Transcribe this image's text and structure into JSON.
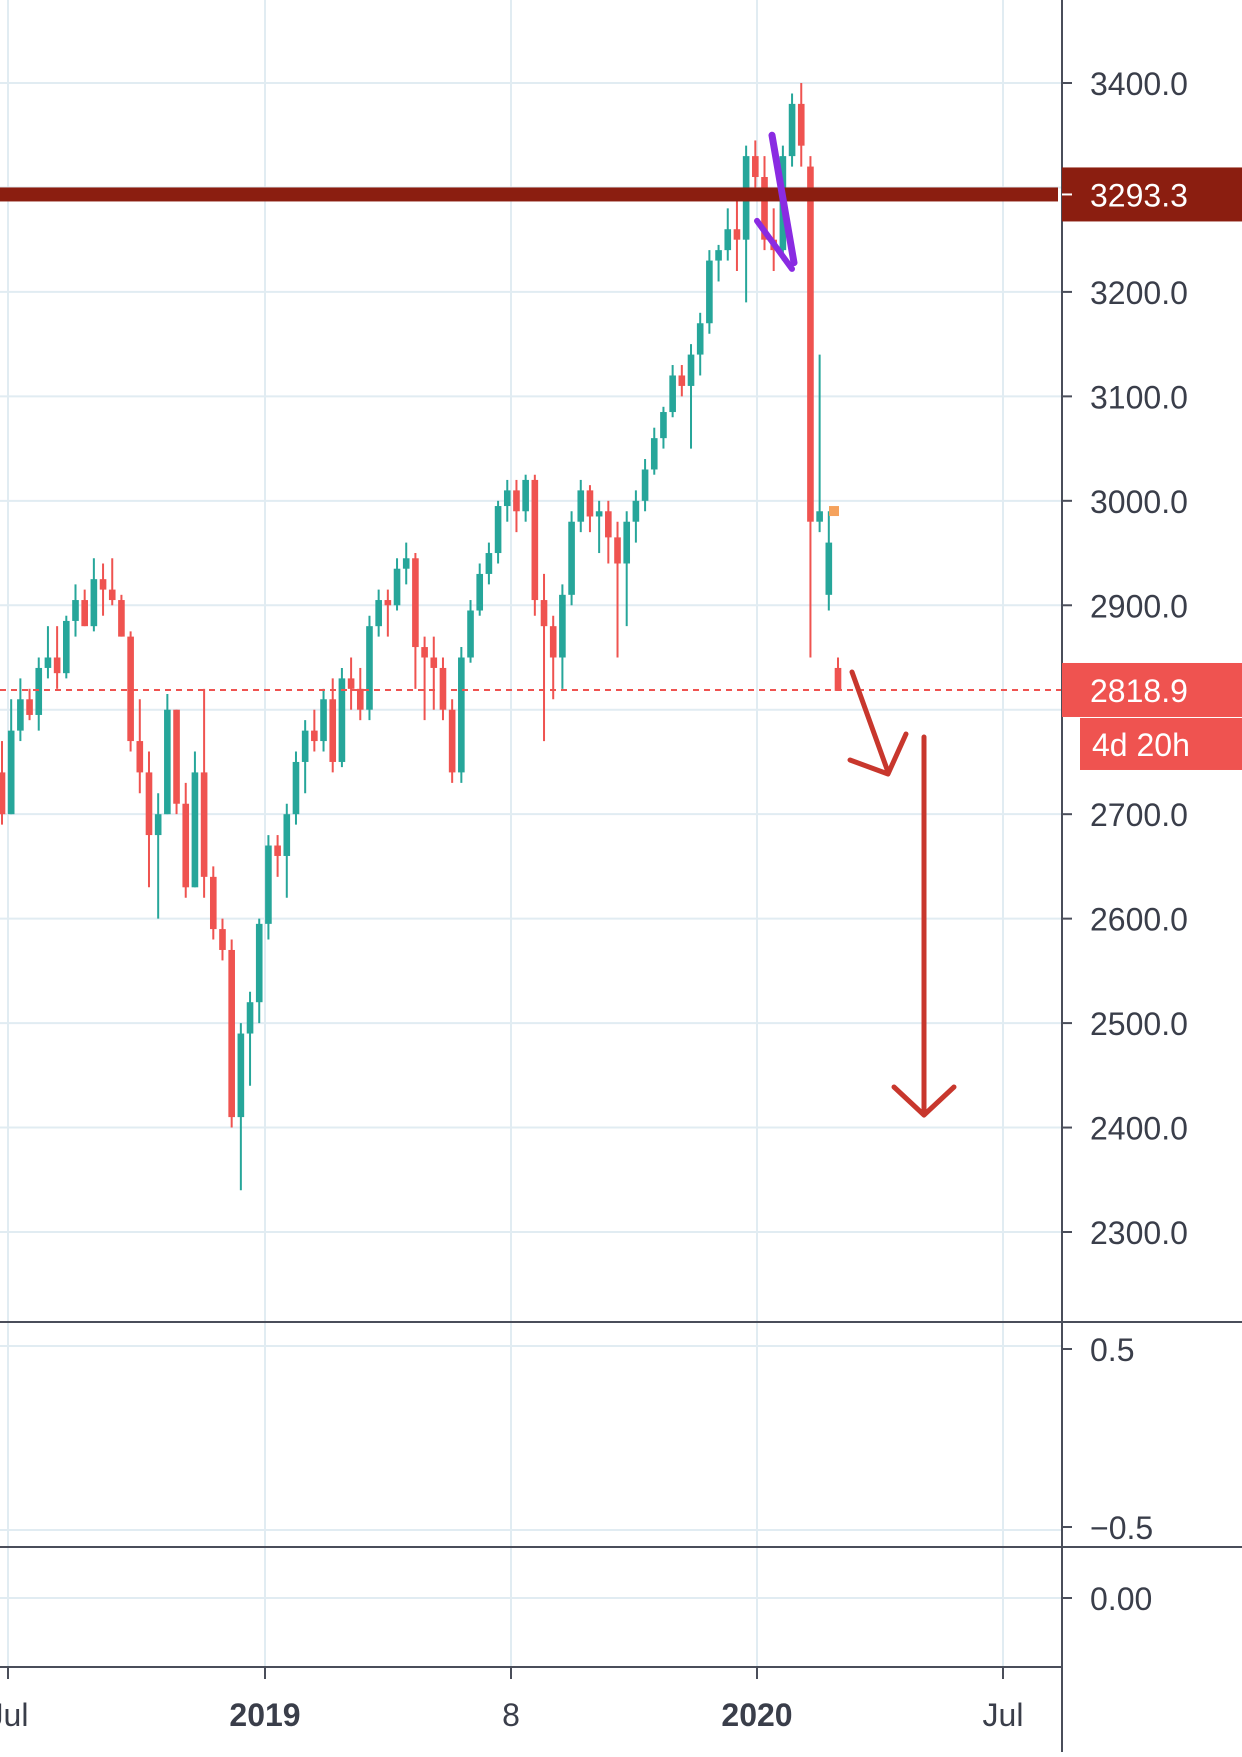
{
  "chart_data": {
    "type": "candlestick",
    "instrument_note": "",
    "colors": {
      "up": "#26a69a",
      "down": "#ef5350",
      "resistance": "#8b1e10",
      "pattern": "#8a2be2",
      "arrow": "#c8372d",
      "grid": "#e1ecf2",
      "axis_text": "#3a3e4a",
      "pane_border": "#4a4e5a",
      "price_label_bg": "#ef5350"
    },
    "price_axis": {
      "ticks": [
        "3400.0",
        "3200.0",
        "3100.0",
        "3000.0",
        "2900.0",
        "2700.0",
        "2600.0",
        "2500.0",
        "2400.0",
        "2300.0"
      ],
      "range": [
        2230,
        3470
      ]
    },
    "time_axis": {
      "labels": [
        {
          "text": "Jul",
          "bold": false
        },
        {
          "text": "2019",
          "bold": true
        },
        {
          "text": "8",
          "bold": false
        },
        {
          "text": "2020",
          "bold": true
        },
        {
          "text": "Jul",
          "bold": false
        }
      ]
    },
    "price_labels": {
      "resistance": "3293.3",
      "last": "2818.9",
      "countdown": "4d 20h"
    },
    "resistance_level": 3293.3,
    "last_price": 2818.9,
    "lower_pane_1": {
      "ticks": [
        "0.5",
        "−0.5"
      ]
    },
    "lower_pane_2": {
      "ticks": [
        "0.00"
      ]
    },
    "candles": [
      [
        2740,
        2770,
        2690,
        2700
      ],
      [
        2700,
        2810,
        2700,
        2780
      ],
      [
        2780,
        2830,
        2770,
        2810
      ],
      [
        2810,
        2820,
        2790,
        2795
      ],
      [
        2795,
        2850,
        2780,
        2840
      ],
      [
        2840,
        2880,
        2830,
        2850
      ],
      [
        2850,
        2880,
        2820,
        2835
      ],
      [
        2835,
        2890,
        2830,
        2885
      ],
      [
        2885,
        2920,
        2870,
        2905
      ],
      [
        2905,
        2915,
        2880,
        2880
      ],
      [
        2880,
        2945,
        2875,
        2925
      ],
      [
        2925,
        2940,
        2890,
        2915
      ],
      [
        2915,
        2945,
        2900,
        2905
      ],
      [
        2905,
        2910,
        2870,
        2870
      ],
      [
        2870,
        2875,
        2760,
        2770
      ],
      [
        2770,
        2810,
        2720,
        2740
      ],
      [
        2740,
        2760,
        2630,
        2680
      ],
      [
        2680,
        2720,
        2600,
        2700
      ],
      [
        2700,
        2815,
        2700,
        2800
      ],
      [
        2800,
        2800,
        2700,
        2710
      ],
      [
        2710,
        2730,
        2620,
        2630
      ],
      [
        2630,
        2760,
        2630,
        2740
      ],
      [
        2740,
        2820,
        2620,
        2640
      ],
      [
        2640,
        2650,
        2580,
        2590
      ],
      [
        2590,
        2600,
        2560,
        2570
      ],
      [
        2570,
        2580,
        2400,
        2410
      ],
      [
        2410,
        2500,
        2340,
        2490
      ],
      [
        2490,
        2530,
        2440,
        2520
      ],
      [
        2520,
        2600,
        2500,
        2595
      ],
      [
        2595,
        2680,
        2580,
        2670
      ],
      [
        2670,
        2680,
        2640,
        2660
      ],
      [
        2660,
        2710,
        2620,
        2700
      ],
      [
        2700,
        2760,
        2690,
        2750
      ],
      [
        2750,
        2790,
        2720,
        2780
      ],
      [
        2780,
        2800,
        2760,
        2770
      ],
      [
        2770,
        2820,
        2760,
        2810
      ],
      [
        2810,
        2830,
        2740,
        2750
      ],
      [
        2750,
        2840,
        2745,
        2830
      ],
      [
        2830,
        2850,
        2800,
        2820
      ],
      [
        2820,
        2840,
        2790,
        2800
      ],
      [
        2800,
        2890,
        2790,
        2880
      ],
      [
        2880,
        2915,
        2870,
        2905
      ],
      [
        2905,
        2915,
        2870,
        2900
      ],
      [
        2900,
        2945,
        2895,
        2935
      ],
      [
        2935,
        2960,
        2920,
        2945
      ],
      [
        2945,
        2950,
        2820,
        2860
      ],
      [
        2860,
        2870,
        2790,
        2850
      ],
      [
        2850,
        2870,
        2800,
        2840
      ],
      [
        2840,
        2850,
        2790,
        2800
      ],
      [
        2800,
        2810,
        2730,
        2740
      ],
      [
        2740,
        2860,
        2730,
        2850
      ],
      [
        2850,
        2905,
        2845,
        2895
      ],
      [
        2895,
        2940,
        2890,
        2930
      ],
      [
        2930,
        2960,
        2920,
        2950
      ],
      [
        2950,
        3000,
        2940,
        2995
      ],
      [
        2995,
        3020,
        2980,
        3010
      ],
      [
        3010,
        3020,
        2970,
        2990
      ],
      [
        2990,
        3025,
        2980,
        3020
      ],
      [
        3020,
        3025,
        2890,
        2905
      ],
      [
        2905,
        2930,
        2770,
        2880
      ],
      [
        2880,
        2890,
        2810,
        2850
      ],
      [
        2850,
        2920,
        2820,
        2910
      ],
      [
        2910,
        2990,
        2900,
        2980
      ],
      [
        2980,
        3020,
        2970,
        3010
      ],
      [
        3010,
        3015,
        2970,
        2985
      ],
      [
        2985,
        3000,
        2950,
        2990
      ],
      [
        2990,
        3000,
        2940,
        2965
      ],
      [
        2965,
        2980,
        2850,
        2940
      ],
      [
        2940,
        2990,
        2880,
        2980
      ],
      [
        2980,
        3010,
        2960,
        3000
      ],
      [
        3000,
        3040,
        2990,
        3030
      ],
      [
        3030,
        3070,
        3025,
        3060
      ],
      [
        3060,
        3090,
        3050,
        3085
      ],
      [
        3085,
        3130,
        3080,
        3120
      ],
      [
        3120,
        3130,
        3100,
        3110
      ],
      [
        3110,
        3150,
        3050,
        3140
      ],
      [
        3140,
        3180,
        3120,
        3170
      ],
      [
        3170,
        3240,
        3160,
        3230
      ],
      [
        3230,
        3245,
        3210,
        3240
      ],
      [
        3240,
        3280,
        3230,
        3260
      ],
      [
        3260,
        3300,
        3220,
        3250
      ],
      [
        3250,
        3340,
        3190,
        3330
      ],
      [
        3330,
        3345,
        3300,
        3310
      ],
      [
        3310,
        3330,
        3240,
        3250
      ],
      [
        3250,
        3280,
        3220,
        3240
      ],
      [
        3240,
        3340,
        3230,
        3330
      ],
      [
        3330,
        3390,
        3320,
        3380
      ],
      [
        3380,
        3400,
        3320,
        3340
      ],
      [
        3320,
        3330,
        2850,
        2980
      ],
      [
        2980,
        3140,
        2970,
        2990
      ],
      [
        2910,
        2990,
        2895,
        2960
      ],
      [
        2840,
        2850,
        2818,
        2818
      ]
    ],
    "annotations": {
      "pattern_line_points": [
        [
          3270,
          3270
        ],
        [
          3222,
          3248
        ],
        [
          3335,
          3335
        ],
        [
          3222,
          3222
        ]
      ],
      "arrows": [
        "short diagonal down-arrow",
        "long vertical down-arrow"
      ]
    }
  }
}
